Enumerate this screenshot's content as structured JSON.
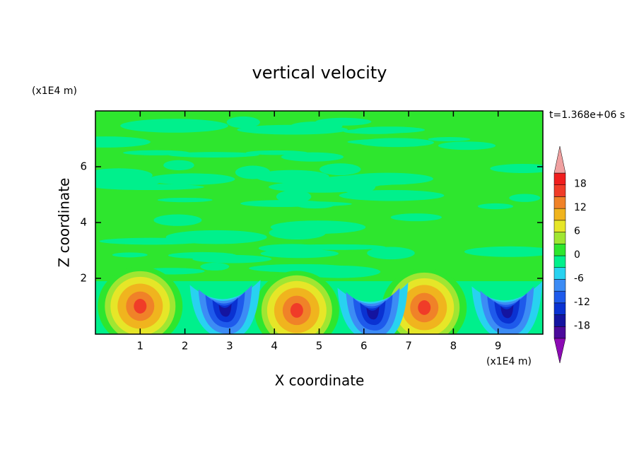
{
  "chart_data": {
    "type": "contour",
    "title": "vertical velocity",
    "xlabel": "X coordinate",
    "ylabel": "Z coordinate",
    "x_unit": "(x1E4 m)",
    "y_unit": "(x1E4 m)",
    "time_label": "t=1.368e+06 s",
    "xlim": [
      0,
      10
    ],
    "xticks": [
      1,
      2,
      3,
      4,
      5,
      6,
      7,
      8,
      9
    ],
    "ylim": [
      0,
      8
    ],
    "yticks": [
      2,
      4,
      6
    ],
    "levels": [
      -21,
      -18,
      -15,
      -12,
      -9,
      -6,
      -3,
      0,
      3,
      6,
      9,
      12,
      15,
      18,
      21
    ],
    "colors": [
      "#8c0ab4",
      "#4b0a9b",
      "#1414a0",
      "#0a32d2",
      "#1e5aeb",
      "#3c8cf5",
      "#28d2f0",
      "#00f08c",
      "#2ee62e",
      "#a0e632",
      "#e6e628",
      "#f0b41e",
      "#f08228",
      "#f03c28",
      "#f01e1e",
      "#f0a0a0"
    ],
    "colorbar_ticks": [
      18,
      12,
      6,
      0,
      -6,
      -12,
      -18
    ]
  }
}
